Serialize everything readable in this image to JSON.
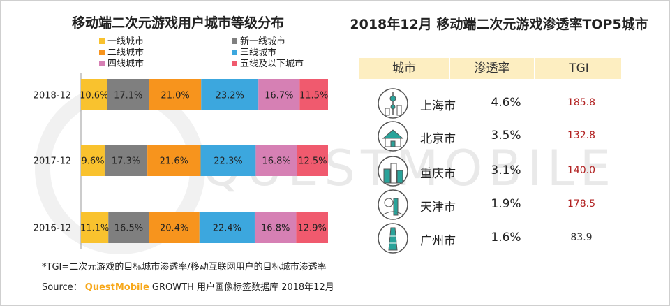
{
  "left": {
    "title": "移动端二次元游戏用户城市等级分布"
  },
  "right": {
    "title": "2018年12月 移动端二次元游戏渗透率TOP5城市",
    "headers": [
      "城市",
      "渗透率",
      "TGI"
    ],
    "rows": [
      {
        "city": "上海市",
        "rate": "4.6%",
        "tgi": "185.8",
        "icon": "shanghai-skyline-icon"
      },
      {
        "city": "北京市",
        "rate": "3.5%",
        "tgi": "132.8",
        "icon": "beijing-temple-icon"
      },
      {
        "city": "重庆市",
        "rate": "3.1%",
        "tgi": "140.0",
        "icon": "chongqing-skyline-icon"
      },
      {
        "city": "天津市",
        "rate": "1.9%",
        "tgi": "178.5",
        "icon": "tianjin-skyline-icon"
      },
      {
        "city": "广州市",
        "rate": "1.6%",
        "tgi": "83.9",
        "icon": "guangzhou-tower-icon"
      }
    ]
  },
  "chart_data": {
    "type": "bar",
    "stacked": true,
    "orientation": "horizontal",
    "percent": true,
    "title": "移动端二次元游戏用户城市等级分布",
    "categories": [
      "2018-12",
      "2017-12",
      "2016-12"
    ],
    "legend_position": "top",
    "series": [
      {
        "name": "一线城市",
        "color": "#f9c22e",
        "values": [
          10.6,
          9.6,
          11.1
        ],
        "labels": [
          "10.6%",
          "9.6%",
          "11.1%"
        ]
      },
      {
        "name": "新一线城市",
        "color": "#7f7f7f",
        "values": [
          17.1,
          17.3,
          16.5
        ],
        "labels": [
          "17.1%",
          "17.3%",
          "16.5%"
        ]
      },
      {
        "name": "二线城市",
        "color": "#f7941d",
        "values": [
          21.0,
          21.6,
          20.4
        ],
        "labels": [
          "21.0%",
          "21.6%",
          "20.4%"
        ]
      },
      {
        "name": "三线城市",
        "color": "#3ca7de",
        "values": [
          23.2,
          22.3,
          22.4
        ],
        "labels": [
          "23.2%",
          "22.3%",
          "22.4%"
        ]
      },
      {
        "name": "四线城市",
        "color": "#d680b4",
        "values": [
          16.7,
          16.8,
          16.8
        ],
        "labels": [
          "16.7%",
          "16.8%",
          "16.8%"
        ]
      },
      {
        "name": "五线及以下城市",
        "color": "#f05a6e",
        "values": [
          11.5,
          12.5,
          12.9
        ],
        "labels": [
          "11.5%",
          "12.5%",
          "12.9%"
        ]
      }
    ]
  },
  "colors": {
    "tgi_high": "#b22222",
    "tgi_low": "#333333",
    "icon_teal": "#2aa39a",
    "header_bg": "#fdeec1"
  },
  "footnote": "*TGI=二次元游戏的目标城市渗透率/移动互联网用户的目标城市渗透率",
  "source": {
    "prefix": "Source：",
    "brand": "QuestMobile",
    "rest": "GROWTH 用户画像标签数据库 2018年12月"
  },
  "watermark": "QUESTMOBILE"
}
